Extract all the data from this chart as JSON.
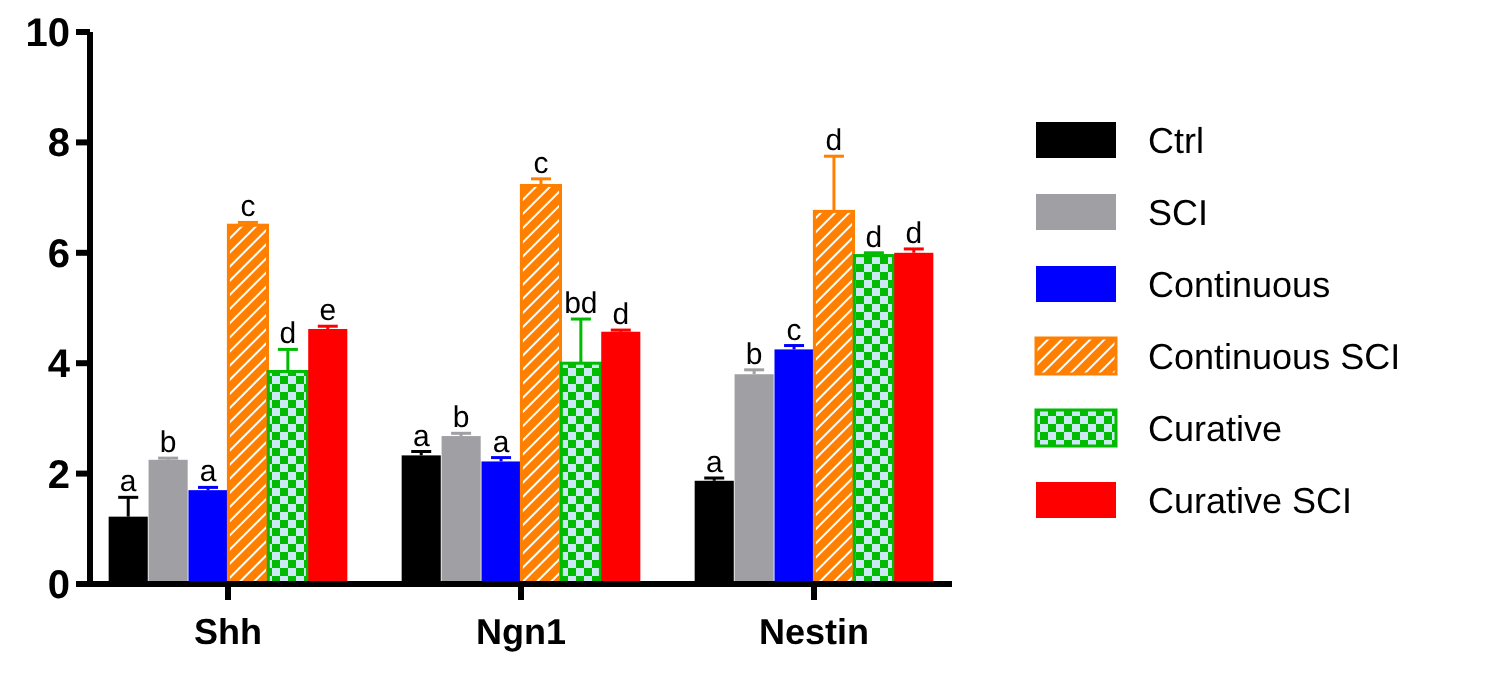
{
  "chart_data": {
    "type": "bar",
    "categories": [
      "Shh",
      "Ngn1",
      "Nestin"
    ],
    "ylim": [
      0,
      10
    ],
    "yticks": [
      0,
      2,
      4,
      6,
      8,
      10
    ],
    "grid": false,
    "legend": "right",
    "series": [
      {
        "name": "Ctrl",
        "color": "#000000",
        "values": [
          1.22,
          2.33,
          1.87
        ],
        "errors": [
          [
            1.22,
            1.57
          ],
          [
            2.33,
            2.4
          ],
          [
            1.87,
            1.92
          ]
        ],
        "value_labels": [
          "a",
          "a",
          "a"
        ]
      },
      {
        "name": "SCI",
        "color": "#a0a0a4",
        "values": [
          2.25,
          2.68,
          3.8
        ],
        "errors": [
          [
            2.25,
            2.28
          ],
          [
            2.68,
            2.73
          ],
          [
            3.8,
            3.88
          ]
        ],
        "value_labels": [
          "b",
          "b",
          "b"
        ]
      },
      {
        "name": "Continuous",
        "color": "#0000ff",
        "values": [
          1.7,
          2.22,
          4.25
        ],
        "errors": [
          [
            1.7,
            1.75
          ],
          [
            2.22,
            2.29
          ],
          [
            4.25,
            4.32
          ]
        ],
        "value_labels": [
          "a",
          "a",
          "c"
        ]
      },
      {
        "name": "Continuous SCI",
        "color": "#ff8000",
        "values": [
          6.5,
          7.22,
          6.75
        ],
        "errors": [
          [
            6.5,
            6.55
          ],
          [
            7.22,
            7.34
          ],
          [
            6.75,
            7.75
          ]
        ],
        "value_labels": [
          "c",
          "c",
          "d"
        ]
      },
      {
        "name": "Curative",
        "color": "#00bb00",
        "values": [
          3.85,
          4.0,
          5.95
        ],
        "errors": [
          [
            3.85,
            4.25
          ],
          [
            4.0,
            4.8
          ],
          [
            5.95,
            6.0
          ]
        ],
        "value_labels": [
          "d",
          "bd",
          "d"
        ]
      },
      {
        "name": "Curative SCI",
        "color": "#ff0000",
        "values": [
          4.62,
          4.57,
          6.0
        ],
        "errors": [
          [
            4.62,
            4.67
          ],
          [
            4.57,
            4.6
          ],
          [
            6.0,
            6.07
          ]
        ],
        "value_labels": [
          "e",
          "d",
          "d"
        ]
      }
    ]
  }
}
